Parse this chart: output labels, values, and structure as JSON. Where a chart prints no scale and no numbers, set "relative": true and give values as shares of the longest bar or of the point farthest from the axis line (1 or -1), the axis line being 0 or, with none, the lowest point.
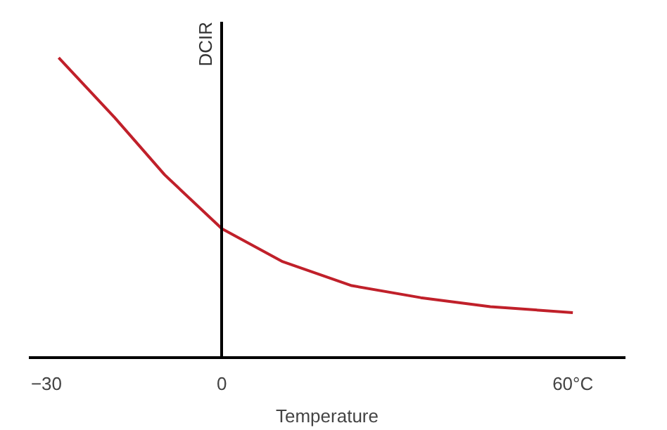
{
  "chart_data": {
    "type": "line",
    "xlabel": "Temperature",
    "ylabel": "DCIR",
    "relative": true,
    "x": [
      -27.9,
      -18.3,
      -9.8,
      0,
      10.4,
      22.2,
      34,
      45.9,
      60
    ],
    "series": [
      {
        "color": "#c0202a",
        "values": [
          1,
          0.8,
          0.61,
          0.43,
          0.32,
          0.24,
          0.2,
          0.17,
          0.15
        ]
      }
    ],
    "xlim": [
      -33,
      69
    ],
    "xticks": [
      -30,
      0,
      {
        "value": 60,
        "label": "60°C"
      }
    ],
    "marker": "none",
    "line_style": "solid"
  }
}
